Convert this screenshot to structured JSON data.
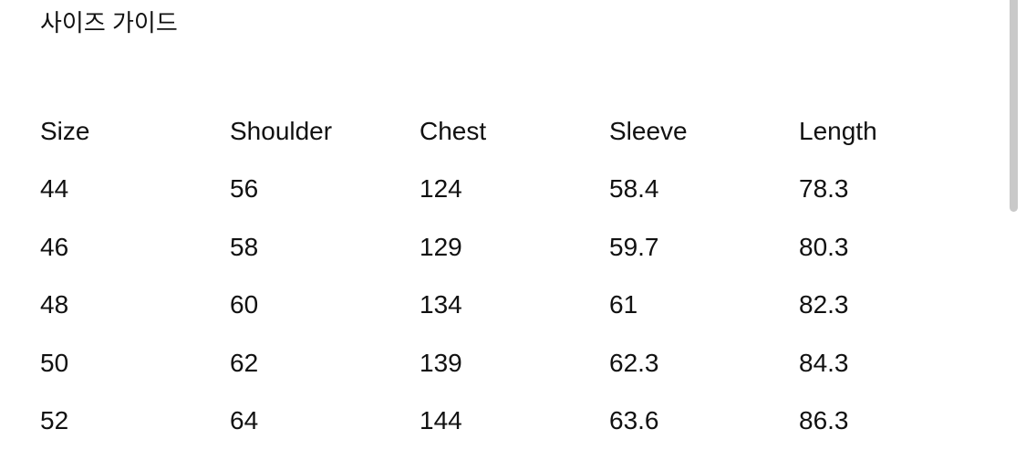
{
  "title": "사이즈 가이드",
  "table": {
    "headers": [
      "Size",
      "Shoulder",
      "Chest",
      "Sleeve",
      "Length"
    ],
    "rows": [
      [
        "44",
        "56",
        "124",
        "58.4",
        "78.3"
      ],
      [
        "46",
        "58",
        "129",
        "59.7",
        "80.3"
      ],
      [
        "48",
        "60",
        "134",
        "61",
        "82.3"
      ],
      [
        "50",
        "62",
        "139",
        "62.3",
        "84.3"
      ],
      [
        "52",
        "64",
        "144",
        "63.6",
        "86.3"
      ]
    ]
  }
}
